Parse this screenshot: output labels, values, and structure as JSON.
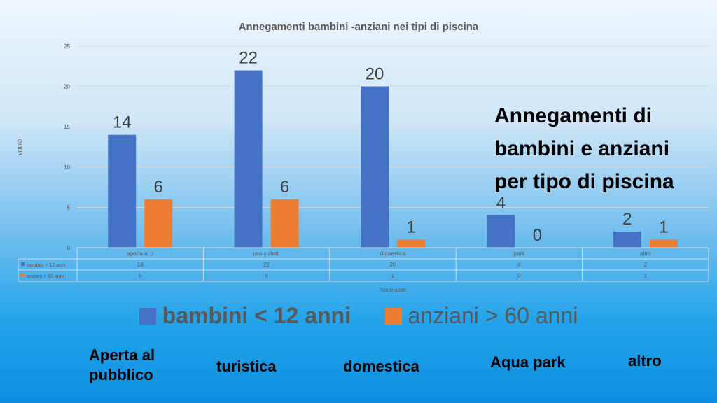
{
  "colors": {
    "series0": "#4472c4",
    "series1": "#ed7d31",
    "axis_text": "#595959",
    "grid": "#d9d9d9"
  },
  "chart_data": {
    "type": "bar",
    "title": "Annegamenti bambini -anziani nei tipi di piscina",
    "categories": [
      "aperta al p",
      "uso collett.",
      "domestica",
      "park",
      "altro"
    ],
    "series": [
      {
        "name": "bambini < 12 anni",
        "values": [
          14,
          22,
          20,
          4,
          2
        ]
      },
      {
        "name": "anziani > 60 anni",
        "values": [
          6,
          6,
          1,
          0,
          1
        ]
      }
    ],
    "xlabel": "Titolo asse",
    "ylabel": "vittime",
    "ylim": [
      0,
      25
    ],
    "yticks": [
      0,
      5,
      10,
      15,
      20,
      25
    ],
    "grid": true,
    "data_table": true
  },
  "overlay": {
    "headline": "Annegamenti di bambini e anziani per tipo di piscina",
    "legend": [
      "bambini < 12 anni",
      "anziani > 60 anni"
    ],
    "categories": [
      "Aperta al pubblico",
      "turistica",
      "domestica",
      "Aqua park",
      "altro"
    ]
  }
}
